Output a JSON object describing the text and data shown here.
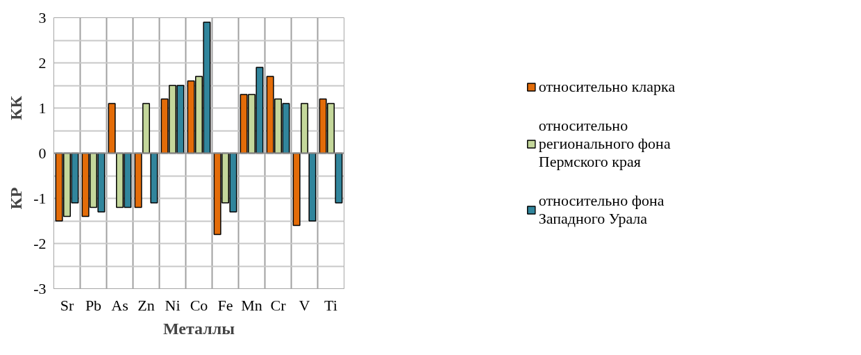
{
  "chart_data": {
    "type": "bar",
    "xlabel": "Металлы",
    "ylabel": "КК",
    "annotations": [
      "КР"
    ],
    "categories": [
      "Sr",
      "Pb",
      "As",
      "Zn",
      "Ni",
      "Co",
      "Fe",
      "Mn",
      "Cr",
      "V",
      "Ti"
    ],
    "series": [
      {
        "name": "относительно кларка",
        "color": "#e36c09",
        "values": [
          -1.5,
          -1.4,
          1.1,
          -1.2,
          1.2,
          1.6,
          -1.8,
          1.3,
          1.7,
          -1.6,
          1.2
        ]
      },
      {
        "name": "относительно регионального фона Пермского края",
        "color": "#c4d79b",
        "values": [
          -1.4,
          -1.2,
          -1.2,
          1.1,
          1.5,
          1.7,
          -1.1,
          1.3,
          1.2,
          1.1,
          1.1
        ]
      },
      {
        "name": "относительно фона Западного Урала",
        "color": "#31859c",
        "values": [
          -1.1,
          -1.3,
          -1.2,
          -1.1,
          1.5,
          2.9,
          -1.3,
          1.9,
          1.1,
          -1.5,
          -1.1
        ]
      }
    ],
    "ylim": [
      -3,
      3
    ],
    "yticks": [
      -3,
      {
        "value": -2.5,
        "label": null
      },
      -2,
      {
        "value": -1.5,
        "label": null
      },
      -1,
      {
        "value": -0.5,
        "label": null
      },
      0,
      {
        "value": 0.5,
        "label": null
      },
      1,
      {
        "value": 1.5,
        "label": null
      },
      2,
      {
        "value": 2.5,
        "label": null
      },
      3
    ],
    "grid": true,
    "legend": "right"
  }
}
